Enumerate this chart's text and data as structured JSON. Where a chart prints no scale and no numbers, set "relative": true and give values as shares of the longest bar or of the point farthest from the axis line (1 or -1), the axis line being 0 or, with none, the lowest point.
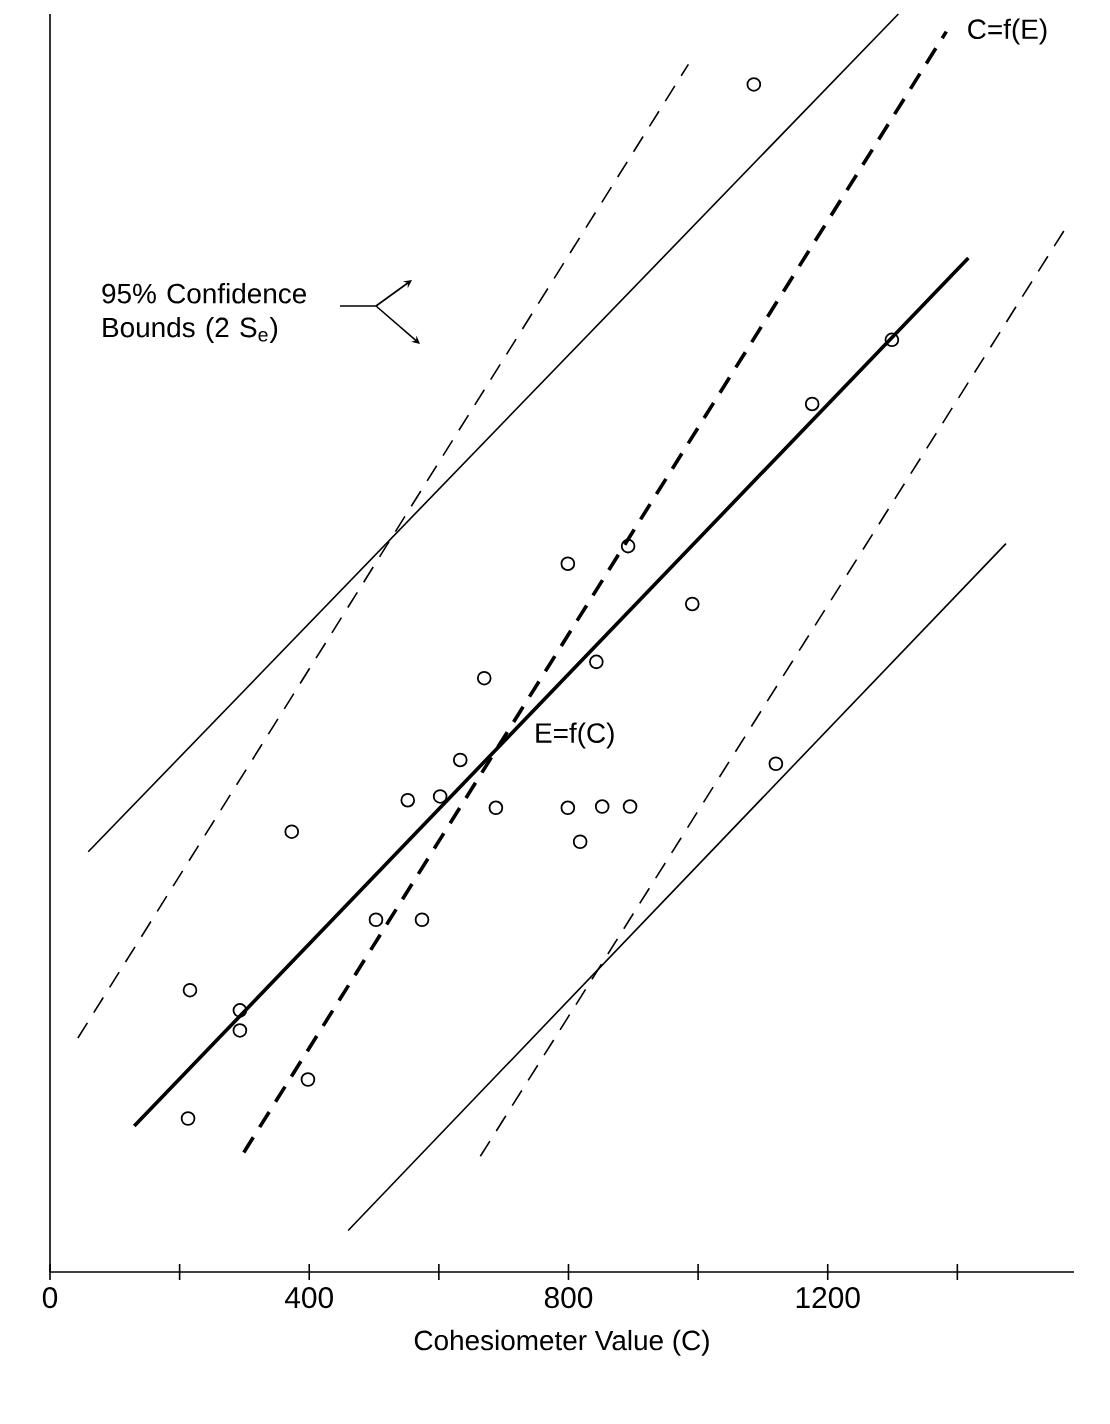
{
  "chart_data": {
    "type": "scatter",
    "relative": true,
    "xlabel": "Cohesiometer Value (C)",
    "xlim": [
      0,
      1580
    ],
    "xticks": [
      0,
      {
        "value": 200,
        "label": null
      },
      400,
      {
        "value": 600,
        "label": null
      },
      800,
      {
        "value": 1000,
        "label": null
      },
      1200,
      {
        "value": 1400,
        "label": null
      }
    ],
    "tick_labels": "x",
    "grid": false,
    "marker": "circle",
    "annotations": [
      "95% Confidence Bounds (2 S$_{e}$)"
    ],
    "series": [
      {
        "type": "scatter",
        "color": "#000000",
        "x": [
          1086,
          1299,
          1176,
          892,
          799,
          991,
          843,
          670,
          633,
          552,
          602,
          688,
          799,
          852,
          895,
          818,
          1120,
          373,
          503,
          574,
          216,
          293,
          293,
          398,
          213
        ],
        "values": [
          0.944,
          0.741,
          0.69,
          0.577,
          0.563,
          0.531,
          0.485,
          0.472,
          0.407,
          0.375,
          0.378,
          0.369,
          0.369,
          0.37,
          0.37,
          0.342,
          0.404,
          0.35,
          0.28,
          0.28,
          0.224,
          0.208,
          0.192,
          0.153,
          0.122
        ]
      },
      {
        "type": "line",
        "name": "E=f(C)",
        "color": "#000000",
        "line_style": "solid",
        "marker": "none",
        "x": [
          130,
          1417
        ],
        "values": [
          0.116,
          0.806
        ]
      },
      {
        "type": "line",
        "name": "C=f(E)",
        "color": "#000000",
        "line_style": "dashed",
        "marker": "none",
        "x": [
          299,
          1383
        ],
        "values": [
          0.095,
          0.986
        ]
      },
      {
        "type": "line",
        "color": "#000000",
        "line_style": "solid",
        "marker": "none",
        "x": [
          59,
          1309
        ],
        "values": [
          0.334,
          1.0
        ]
      },
      {
        "type": "line",
        "color": "#000000",
        "line_style": "solid",
        "marker": "none",
        "x": [
          460,
          1475
        ],
        "values": [
          0.033,
          0.579
        ]
      },
      {
        "type": "line",
        "color": "#000000",
        "line_style": "dashed",
        "marker": "none",
        "x": [
          43,
          985
        ],
        "values": [
          0.186,
          0.96
        ]
      },
      {
        "type": "line",
        "color": "#000000",
        "line_style": "dashed",
        "marker": "none",
        "x": [
          664,
          1571
        ],
        "values": [
          0.092,
          0.833
        ]
      }
    ]
  }
}
